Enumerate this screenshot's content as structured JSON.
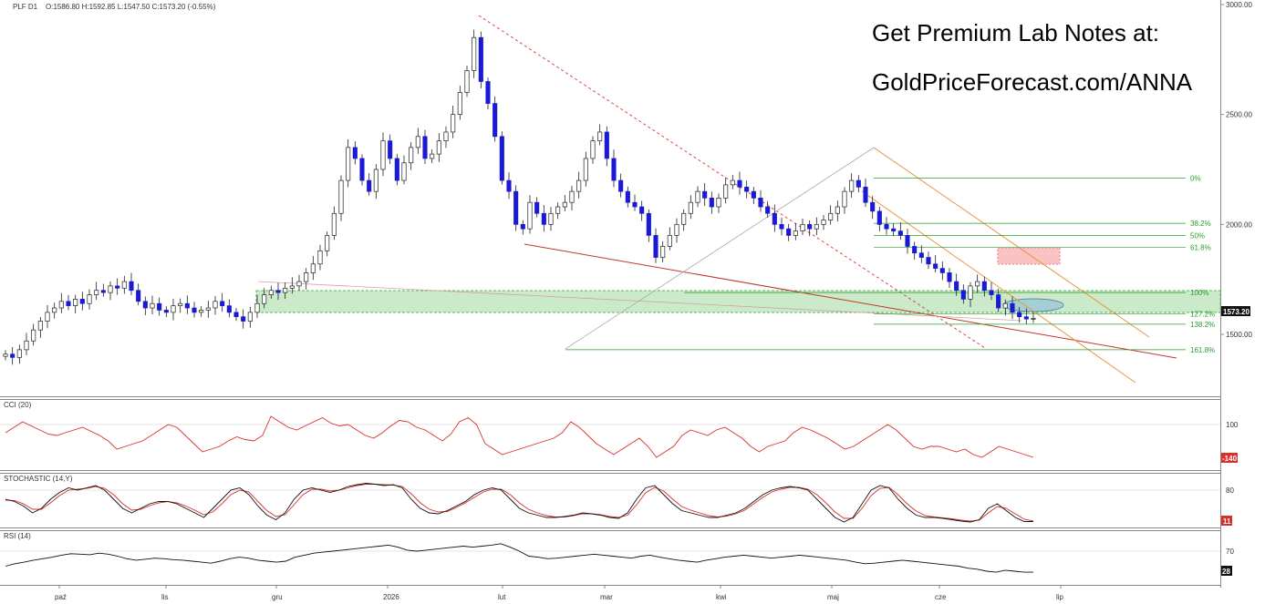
{
  "header": {
    "symbol": "PLF D1",
    "ohlc": "O:1586.80  H:1592.85  L:1547.50  C:1573.20  (-0.55%)"
  },
  "promo": {
    "line1": "Get Premium Lab Notes at:",
    "line2": "GoldPriceForecast.com/ANNA"
  },
  "colors": {
    "bull": "#ffffff",
    "bear": "#1a1ad6",
    "support_zone": "#8fd18f",
    "resistance_zone": "#f5a0a0",
    "fib": "#2a9d2a",
    "channel": "#e8953a",
    "trendline": "#c0392b",
    "cci": "#d9302a",
    "stoch_k": "#111111",
    "stoch_d": "#d9302a",
    "rsi": "#111111"
  },
  "chart_data": [
    {
      "type": "candlestick",
      "symbol": "PLF",
      "timeframe": "D1",
      "ylim": [
        1350,
        3000
      ],
      "y_ticks": [
        {
          "value": 3000,
          "label": "3000.00"
        },
        {
          "value": 2500,
          "label": "2500.00"
        },
        {
          "value": 2000,
          "label": "2000.00"
        },
        {
          "value": 1500,
          "label": "1500.00"
        }
      ],
      "x_ticks": [
        "paź",
        "lis",
        "gru",
        "2026",
        "lut",
        "mar",
        "kwi",
        "maj",
        "cze",
        "lip"
      ],
      "last_price": "1573.20",
      "close_series": [
        1410,
        1395,
        1430,
        1470,
        1520,
        1560,
        1600,
        1620,
        1650,
        1630,
        1660,
        1640,
        1680,
        1700,
        1690,
        1720,
        1710,
        1740,
        1700,
        1650,
        1620,
        1640,
        1610,
        1600,
        1630,
        1640,
        1620,
        1600,
        1610,
        1620,
        1650,
        1630,
        1600,
        1580,
        1560,
        1600,
        1640,
        1680,
        1700,
        1690,
        1710,
        1720,
        1740,
        1780,
        1820,
        1880,
        1950,
        2050,
        2200,
        2350,
        2300,
        2200,
        2150,
        2250,
        2380,
        2300,
        2200,
        2280,
        2350,
        2400,
        2300,
        2320,
        2380,
        2420,
        2500,
        2600,
        2700,
        2850,
        2650,
        2550,
        2400,
        2200,
        2150,
        2000,
        1980,
        2100,
        2050,
        2000,
        2050,
        2080,
        2100,
        2150,
        2200,
        2300,
        2380,
        2420,
        2300,
        2200,
        2150,
        2100,
        2080,
        2050,
        1950,
        1850,
        1900,
        1950,
        2000,
        2050,
        2100,
        2150,
        2120,
        2080,
        2120,
        2180,
        2200,
        2170,
        2150,
        2120,
        2080,
        2050,
        2000,
        1980,
        1950,
        1970,
        2000,
        1980,
        2000,
        2020,
        2050,
        2080,
        2150,
        2200,
        2170,
        2100,
        2060,
        2000,
        1980,
        1970,
        1950,
        1900,
        1870,
        1850,
        1820,
        1800,
        1780,
        1740,
        1700,
        1660,
        1720,
        1740,
        1700,
        1680,
        1620,
        1640,
        1600,
        1580,
        1570,
        1573
      ],
      "annotations": {
        "fibonacci": [
          {
            "label": "0%",
            "value": 2210
          },
          {
            "label": "38.2%",
            "value": 2005
          },
          {
            "label": "50%",
            "value": 1950
          },
          {
            "label": "61.8%",
            "value": 1895
          },
          {
            "label": "100%",
            "value": 1690
          },
          {
            "label": "127.2%",
            "value": 1593
          },
          {
            "label": "138.2%",
            "value": 1546
          },
          {
            "label": "161.8%",
            "value": 1430
          }
        ],
        "support_zone": [
          1580,
          1662
        ],
        "resistance_zone": [
          1703,
          1758
        ]
      }
    },
    {
      "type": "line",
      "title": "CCI (20)",
      "y_ticks": [
        {
          "value": 100,
          "label": "100"
        }
      ],
      "last_value": "-140",
      "values": [
        40,
        80,
        120,
        90,
        60,
        30,
        20,
        40,
        60,
        80,
        50,
        20,
        -20,
        -80,
        -60,
        -40,
        -20,
        20,
        60,
        100,
        80,
        20,
        -40,
        -100,
        -80,
        -60,
        -20,
        10,
        -10,
        -20,
        20,
        160,
        120,
        80,
        60,
        90,
        120,
        150,
        110,
        90,
        100,
        60,
        20,
        0,
        40,
        90,
        130,
        120,
        80,
        60,
        20,
        -20,
        30,
        120,
        150,
        100,
        -40,
        -80,
        -120,
        -100,
        -80,
        -60,
        -40,
        -20,
        0,
        40,
        120,
        80,
        20,
        -40,
        -80,
        -120,
        -80,
        -40,
        0,
        -60,
        -140,
        -100,
        -60,
        20,
        60,
        40,
        20,
        60,
        80,
        40,
        0,
        -60,
        -100,
        -60,
        -40,
        -20,
        40,
        80,
        60,
        30,
        0,
        -40,
        -80,
        -60,
        -20,
        20,
        60,
        100,
        60,
        0,
        -60,
        -80,
        -60,
        -60,
        -80,
        -100,
        -80,
        -120,
        -140,
        -100,
        -60,
        -80,
        -100,
        -120,
        -140
      ]
    },
    {
      "type": "line",
      "title": "STOCHASTIC (14,Y)",
      "y_ticks": [
        {
          "value": 80,
          "label": "80"
        }
      ],
      "last_value": "11",
      "series": [
        {
          "values": [
            60,
            55,
            45,
            30,
            40,
            60,
            75,
            85,
            80,
            85,
            90,
            80,
            60,
            40,
            30,
            40,
            50,
            55,
            55,
            50,
            40,
            30,
            20,
            40,
            60,
            80,
            85,
            70,
            45,
            25,
            15,
            30,
            60,
            80,
            85,
            80,
            75,
            80,
            88,
            92,
            95,
            93,
            90,
            92,
            85,
            60,
            40,
            30,
            28,
            35,
            45,
            55,
            70,
            80,
            85,
            80,
            60,
            40,
            30,
            25,
            20,
            20,
            22,
            25,
            30,
            28,
            25,
            20,
            18,
            30,
            60,
            85,
            90,
            70,
            50,
            35,
            30,
            25,
            20,
            20,
            25,
            30,
            40,
            55,
            70,
            80,
            85,
            88,
            85,
            80,
            60,
            40,
            20,
            10,
            20,
            50,
            80,
            90,
            85,
            60,
            40,
            25,
            20,
            20,
            18,
            15,
            12,
            10,
            15,
            40,
            50,
            35,
            20,
            11,
            11
          ]
        },
        {
          "values": [
            58,
            57,
            50,
            38,
            38,
            52,
            68,
            80,
            82,
            84,
            88,
            84,
            70,
            50,
            36,
            38,
            46,
            52,
            55,
            52,
            45,
            36,
            26,
            32,
            50,
            70,
            80,
            76,
            55,
            35,
            22,
            26,
            48,
            70,
            82,
            82,
            78,
            80,
            85,
            90,
            93,
            93,
            92,
            91,
            88,
            72,
            52,
            38,
            32,
            33,
            42,
            52,
            64,
            76,
            82,
            82,
            70,
            52,
            38,
            30,
            24,
            21,
            21,
            24,
            28,
            28,
            26,
            22,
            20,
            25,
            48,
            74,
            86,
            78,
            60,
            44,
            36,
            30,
            24,
            21,
            23,
            28,
            36,
            50,
            64,
            76,
            82,
            86,
            86,
            82,
            70,
            52,
            32,
            18,
            18,
            40,
            68,
            84,
            86,
            70,
            50,
            34,
            24,
            21,
            19,
            17,
            14,
            12,
            14,
            30,
            44,
            40,
            28,
            16,
            12
          ]
        }
      ]
    },
    {
      "type": "line",
      "title": "RSI (14)",
      "y_ticks": [
        {
          "value": 70,
          "label": "70"
        }
      ],
      "last_value": "28",
      "values": [
        40,
        45,
        48,
        52,
        55,
        58,
        62,
        65,
        64,
        63,
        66,
        64,
        60,
        55,
        52,
        54,
        56,
        55,
        53,
        52,
        50,
        48,
        46,
        50,
        55,
        58,
        56,
        52,
        50,
        48,
        50,
        58,
        62,
        66,
        68,
        70,
        72,
        74,
        76,
        78,
        80,
        82,
        78,
        72,
        70,
        72,
        74,
        76,
        78,
        80,
        78,
        80,
        82,
        85,
        78,
        70,
        60,
        58,
        55,
        56,
        58,
        60,
        62,
        64,
        62,
        60,
        58,
        56,
        60,
        62,
        58,
        55,
        52,
        50,
        48,
        52,
        55,
        58,
        60,
        62,
        60,
        58,
        56,
        58,
        60,
        62,
        60,
        58,
        56,
        54,
        52,
        48,
        45,
        46,
        48,
        50,
        52,
        50,
        48,
        46,
        44,
        42,
        40,
        36,
        34,
        30,
        28,
        32,
        30,
        28,
        28
      ]
    }
  ]
}
